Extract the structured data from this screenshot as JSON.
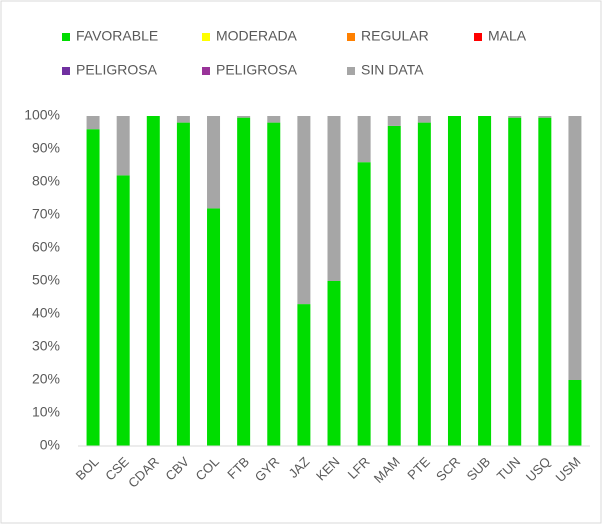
{
  "chart_data": {
    "type": "stacked_bar",
    "categories": [
      "BOL",
      "CSE",
      "CDAR",
      "CBV",
      "COL",
      "FTB",
      "GYR",
      "JAZ",
      "KEN",
      "LFR",
      "MAM",
      "PTE",
      "SCR",
      "SUB",
      "TUN",
      "USQ",
      "USM"
    ],
    "series": [
      {
        "name": "FAVORABLE",
        "color": "#00dd00",
        "values": [
          96,
          82,
          100,
          98,
          72,
          99.5,
          98,
          43,
          50,
          86,
          97,
          98,
          100,
          100,
          99.5,
          99.5,
          20
        ]
      },
      {
        "name": "MODERADA",
        "color": "#ffff00",
        "values": [
          0,
          0,
          0,
          0,
          0,
          0,
          0,
          0,
          0,
          0,
          0,
          0,
          0,
          0,
          0,
          0,
          0
        ]
      },
      {
        "name": "REGULAR",
        "color": "#ff8000",
        "values": [
          0,
          0,
          0,
          0,
          0,
          0,
          0,
          0,
          0,
          0,
          0,
          0,
          0,
          0,
          0,
          0,
          0
        ]
      },
      {
        "name": "MALA",
        "color": "#ff0000",
        "values": [
          0,
          0,
          0,
          0,
          0,
          0,
          0,
          0,
          0,
          0,
          0,
          0,
          0,
          0,
          0,
          0,
          0
        ]
      },
      {
        "name": "PELIGROSA",
        "color": "#7030a0",
        "values": [
          0,
          0,
          0,
          0,
          0,
          0,
          0,
          0,
          0,
          0,
          0,
          0,
          0,
          0,
          0,
          0,
          0
        ]
      },
      {
        "name": "PELIGROSA",
        "color": "#993399",
        "values": [
          0,
          0,
          0,
          0,
          0,
          0,
          0,
          0,
          0,
          0,
          0,
          0,
          0,
          0,
          0,
          0,
          0
        ]
      },
      {
        "name": "SIN DATA",
        "color": "#a6a6a6",
        "values": [
          4,
          18,
          0,
          2,
          28,
          0.5,
          2,
          57,
          50,
          14,
          3,
          2,
          0,
          0,
          0.5,
          0.5,
          80
        ]
      }
    ],
    "ylim": [
      0,
      100
    ],
    "yticks": [
      {
        "value": 0,
        "label": "0%"
      },
      {
        "value": 10,
        "label": "10%"
      },
      {
        "value": 20,
        "label": "20%"
      },
      {
        "value": 30,
        "label": "30%"
      },
      {
        "value": 40,
        "label": "40%"
      },
      {
        "value": 50,
        "label": "50%"
      },
      {
        "value": 60,
        "label": "60%"
      },
      {
        "value": 70,
        "label": "70%"
      },
      {
        "value": 80,
        "label": "80%"
      },
      {
        "value": 90,
        "label": "90%"
      },
      {
        "value": 100,
        "label": "100%"
      }
    ],
    "grid": false
  }
}
